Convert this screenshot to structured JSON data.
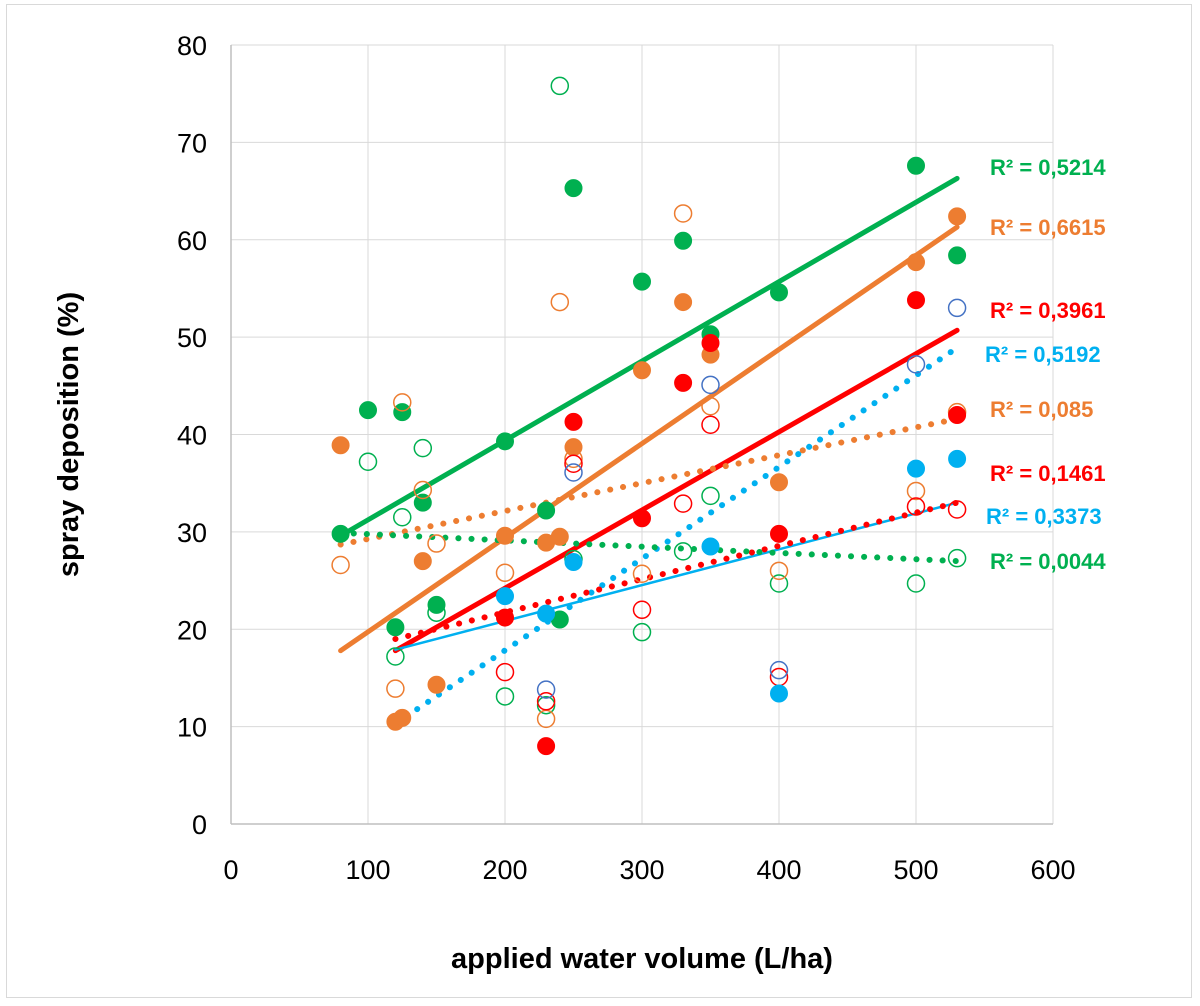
{
  "chart_data": {
    "type": "scatter",
    "title": "",
    "xlabel": "applied water volume (L/ha)",
    "ylabel": "spray deposition (%)",
    "xlim": [
      0,
      600
    ],
    "ylim": [
      0,
      80
    ],
    "xticks": [
      0,
      100,
      200,
      300,
      400,
      500,
      600
    ],
    "yticks": [
      0,
      10,
      20,
      30,
      40,
      50,
      60,
      70,
      80
    ],
    "grid": true,
    "colors": {
      "green": "#00b050",
      "orange": "#ed7d31",
      "red": "#ff0000",
      "blue": "#00b0f0",
      "blue_hollow": "#4472c4"
    },
    "series": [
      {
        "name": "green filled",
        "color": "#00b050",
        "marker": "filled",
        "x": [
          80,
          100,
          120,
          125,
          140,
          150,
          200,
          230,
          240,
          250,
          300,
          330,
          350,
          400,
          500,
          530
        ],
        "y": [
          29.8,
          42.5,
          20.2,
          42.3,
          33,
          22.5,
          39.3,
          32.2,
          21,
          65.3,
          55.7,
          59.9,
          50.3,
          54.6,
          67.6,
          58.4
        ]
      },
      {
        "name": "green hollow",
        "color": "#00b050",
        "marker": "hollow",
        "x": [
          100,
          120,
          125,
          140,
          150,
          200,
          230,
          240,
          250,
          300,
          330,
          350,
          400,
          500,
          530
        ],
        "y": [
          37.2,
          17.2,
          31.5,
          38.6,
          21.7,
          13.1,
          12.2,
          75.8,
          27.2,
          19.7,
          28,
          33.7,
          24.7,
          24.7,
          27.3
        ]
      },
      {
        "name": "orange filled",
        "color": "#ed7d31",
        "marker": "filled",
        "x": [
          80,
          120,
          125,
          140,
          150,
          200,
          230,
          240,
          250,
          300,
          330,
          350,
          400,
          500,
          530
        ],
        "y": [
          38.9,
          10.5,
          10.9,
          27,
          14.3,
          29.6,
          28.9,
          29.5,
          38.7,
          46.6,
          53.6,
          48.2,
          35.1,
          57.7,
          62.4
        ]
      },
      {
        "name": "orange hollow",
        "color": "#ed7d31",
        "marker": "hollow",
        "x": [
          80,
          120,
          125,
          140,
          150,
          200,
          230,
          240,
          250,
          300,
          330,
          350,
          400,
          500,
          530
        ],
        "y": [
          26.6,
          13.9,
          43.3,
          34.3,
          28.8,
          25.8,
          10.8,
          53.6,
          37.5,
          25.7,
          62.7,
          42.9,
          26,
          34.2,
          42.3
        ]
      },
      {
        "name": "red filled",
        "color": "#ff0000",
        "marker": "filled",
        "x": [
          200,
          230,
          250,
          300,
          330,
          350,
          400,
          500,
          530
        ],
        "y": [
          21.2,
          8,
          41.3,
          31.4,
          45.3,
          49.4,
          29.8,
          53.8,
          42
        ]
      },
      {
        "name": "red hollow",
        "color": "#ff0000",
        "marker": "hollow",
        "x": [
          200,
          230,
          250,
          300,
          330,
          350,
          400,
          500,
          530
        ],
        "y": [
          15.6,
          12.6,
          37,
          22,
          32.9,
          41,
          15.1,
          32.6,
          32.3
        ]
      },
      {
        "name": "blue filled",
        "color": "#00b0f0",
        "marker": "filled",
        "x": [
          200,
          230,
          250,
          350,
          400,
          500,
          530
        ],
        "y": [
          23.4,
          21.6,
          26.9,
          28.5,
          13.4,
          36.5,
          37.5
        ]
      },
      {
        "name": "blue hollow",
        "color": "#4472c4",
        "marker": "hollow",
        "x": [
          230,
          250,
          350,
          400,
          500,
          530
        ],
        "y": [
          13.8,
          36.1,
          45.1,
          15.8,
          47.2,
          53
        ]
      }
    ],
    "trendlines": [
      {
        "series": "green filled",
        "style": "solid",
        "color": "#00b050",
        "width": 5,
        "x": [
          80,
          530
        ],
        "y": [
          29.6,
          66.3
        ]
      },
      {
        "series": "orange filled",
        "style": "solid",
        "color": "#ed7d31",
        "width": 5,
        "x": [
          80,
          530
        ],
        "y": [
          17.8,
          61.3
        ]
      },
      {
        "series": "red filled",
        "style": "solid",
        "color": "#ff0000",
        "width": 5,
        "x": [
          120,
          530
        ],
        "y": [
          17.8,
          50.7
        ]
      },
      {
        "series": "blue filled",
        "style": "solid",
        "color": "#00b0f0",
        "width": 2.5,
        "x": [
          120,
          530
        ],
        "y": [
          17.9,
          33.0
        ]
      },
      {
        "series": "blue hollow",
        "style": "dotted",
        "color": "#00b0f0",
        "width": 6,
        "x": [
          120,
          530
        ],
        "y": [
          10.3,
          48.9
        ]
      },
      {
        "series": "orange hollow",
        "style": "dotted",
        "color": "#ed7d31",
        "width": 6,
        "x": [
          80,
          530
        ],
        "y": [
          28.7,
          41.6
        ]
      },
      {
        "series": "red hollow",
        "style": "dotted",
        "color": "#ff0000",
        "width": 6,
        "x": [
          120,
          530
        ],
        "y": [
          19.0,
          33.0
        ]
      },
      {
        "series": "green hollow",
        "style": "dotted",
        "color": "#00b050",
        "width": 6,
        "x": [
          80,
          530
        ],
        "y": [
          29.9,
          27.0
        ]
      }
    ],
    "annotations": [
      {
        "text": "R² = 0,5214",
        "color": "#00b050"
      },
      {
        "text": "R² = 0,6615",
        "color": "#ed7d31"
      },
      {
        "text": "R² = 0,3961",
        "color": "#ff0000"
      },
      {
        "text": "R² = 0,5192",
        "color": "#00b0f0"
      },
      {
        "text": "R² = 0,085",
        "color": "#ed7d31"
      },
      {
        "text": "R² = 0,1461",
        "color": "#ff0000"
      },
      {
        "text": "R² = 0,3373",
        "color": "#00b0f0"
      },
      {
        "text": "R² = 0,0044",
        "color": "#00b050"
      }
    ]
  }
}
